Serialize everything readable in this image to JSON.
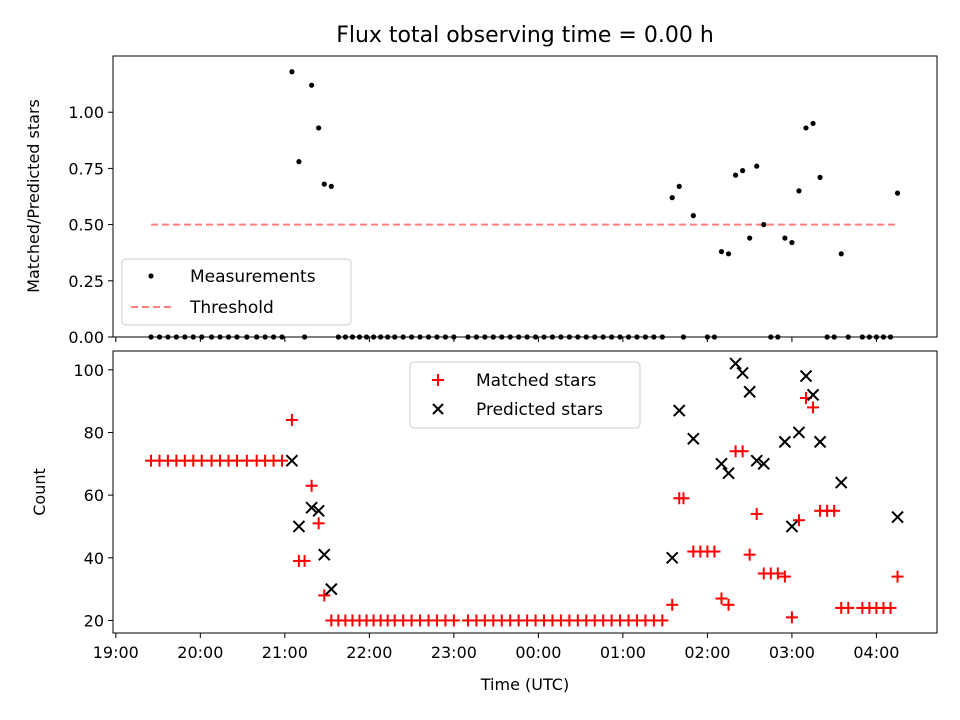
{
  "chart_data": [
    {
      "type": "scatter",
      "title": "Flux total observing time = 0.00 h",
      "xlabel": "",
      "ylabel": "Matched/Predicted stars",
      "ylim": [
        0,
        1.25
      ],
      "yticks": [
        "0.00",
        "0.25",
        "0.50",
        "0.75",
        "1.00"
      ],
      "grid": false,
      "legend_position": "lower-left",
      "threshold": {
        "name": "Threshold",
        "value": 0.5,
        "x_start": "19:25",
        "x_end": "04:15",
        "color": "#ff7f7f"
      },
      "series": [
        {
          "name": "Measurements",
          "color": "#000000",
          "points": [
            [
              "19:25",
              0
            ],
            [
              "19:31",
              0
            ],
            [
              "19:37",
              0
            ],
            [
              "19:43",
              0
            ],
            [
              "19:49",
              0
            ],
            [
              "19:55",
              0
            ],
            [
              "20:01",
              0
            ],
            [
              "20:08",
              0
            ],
            [
              "20:14",
              0
            ],
            [
              "20:20",
              0
            ],
            [
              "20:26",
              0
            ],
            [
              "20:33",
              0
            ],
            [
              "20:40",
              0
            ],
            [
              "20:46",
              0
            ],
            [
              "20:52",
              0
            ],
            [
              "20:58",
              0
            ],
            [
              "21:05",
              1.18
            ],
            [
              "21:10",
              0.78
            ],
            [
              "21:14",
              0
            ],
            [
              "21:19",
              1.12
            ],
            [
              "21:24",
              0.93
            ],
            [
              "21:28",
              0.68
            ],
            [
              "21:33",
              0.67
            ],
            [
              "21:38",
              0
            ],
            [
              "21:43",
              0
            ],
            [
              "21:48",
              0
            ],
            [
              "21:53",
              0
            ],
            [
              "21:58",
              0
            ],
            [
              "22:03",
              0
            ],
            [
              "22:08",
              0
            ],
            [
              "22:13",
              0
            ],
            [
              "22:18",
              0
            ],
            [
              "22:24",
              0
            ],
            [
              "22:30",
              0
            ],
            [
              "22:36",
              0
            ],
            [
              "22:42",
              0
            ],
            [
              "22:48",
              0
            ],
            [
              "22:54",
              0
            ],
            [
              "23:00",
              0
            ],
            [
              "23:10",
              0
            ],
            [
              "23:16",
              0
            ],
            [
              "23:22",
              0
            ],
            [
              "23:28",
              0
            ],
            [
              "23:34",
              0
            ],
            [
              "23:40",
              0
            ],
            [
              "23:46",
              0
            ],
            [
              "23:52",
              0
            ],
            [
              "23:58",
              0
            ],
            [
              "00:04",
              0
            ],
            [
              "00:10",
              0
            ],
            [
              "00:16",
              0
            ],
            [
              "00:22",
              0
            ],
            [
              "00:28",
              0
            ],
            [
              "00:34",
              0
            ],
            [
              "00:40",
              0
            ],
            [
              "00:46",
              0
            ],
            [
              "00:52",
              0
            ],
            [
              "00:58",
              0
            ],
            [
              "01:04",
              0
            ],
            [
              "01:10",
              0
            ],
            [
              "01:16",
              0
            ],
            [
              "01:22",
              0
            ],
            [
              "01:28",
              0
            ],
            [
              "01:35",
              0.62
            ],
            [
              "01:40",
              0.67
            ],
            [
              "01:43",
              0
            ],
            [
              "01:50",
              0.54
            ],
            [
              "02:00",
              0
            ],
            [
              "02:05",
              0
            ],
            [
              "02:10",
              0.38
            ],
            [
              "02:15",
              0.37
            ],
            [
              "02:20",
              0.72
            ],
            [
              "02:25",
              0.74
            ],
            [
              "02:30",
              0.44
            ],
            [
              "02:35",
              0.76
            ],
            [
              "02:40",
              0.5
            ],
            [
              "02:45",
              0
            ],
            [
              "02:50",
              0
            ],
            [
              "02:55",
              0.44
            ],
            [
              "03:00",
              0.42
            ],
            [
              "03:05",
              0.65
            ],
            [
              "03:10",
              0.93
            ],
            [
              "03:15",
              0.95
            ],
            [
              "03:20",
              0.71
            ],
            [
              "03:25",
              0
            ],
            [
              "03:30",
              0
            ],
            [
              "03:35",
              0.37
            ],
            [
              "03:40",
              0
            ],
            [
              "03:50",
              0
            ],
            [
              "03:55",
              0
            ],
            [
              "04:00",
              0
            ],
            [
              "04:05",
              0
            ],
            [
              "04:10",
              0
            ],
            [
              "04:15",
              0.64
            ]
          ]
        }
      ]
    },
    {
      "type": "scatter",
      "title": "",
      "xlabel": "Time (UTC)",
      "ylabel": "Count",
      "ylim": [
        16,
        106
      ],
      "yticks": [
        "20",
        "40",
        "60",
        "80",
        "100"
      ],
      "xticks": [
        "19:00",
        "20:00",
        "21:00",
        "22:00",
        "23:00",
        "00:00",
        "01:00",
        "02:00",
        "03:00",
        "04:00"
      ],
      "grid": false,
      "legend_position": "upper-center",
      "series": [
        {
          "name": "Matched stars",
          "color": "#ff0000",
          "marker": "plus",
          "points": [
            [
              "19:25",
              71
            ],
            [
              "19:31",
              71
            ],
            [
              "19:37",
              71
            ],
            [
              "19:43",
              71
            ],
            [
              "19:49",
              71
            ],
            [
              "19:55",
              71
            ],
            [
              "20:01",
              71
            ],
            [
              "20:08",
              71
            ],
            [
              "20:14",
              71
            ],
            [
              "20:20",
              71
            ],
            [
              "20:26",
              71
            ],
            [
              "20:33",
              71
            ],
            [
              "20:40",
              71
            ],
            [
              "20:46",
              71
            ],
            [
              "20:52",
              71
            ],
            [
              "20:58",
              71
            ],
            [
              "21:05",
              84
            ],
            [
              "21:10",
              39
            ],
            [
              "21:14",
              39
            ],
            [
              "21:19",
              63
            ],
            [
              "21:24",
              51
            ],
            [
              "21:28",
              28
            ],
            [
              "21:33",
              20
            ],
            [
              "21:38",
              20
            ],
            [
              "21:43",
              20
            ],
            [
              "21:48",
              20
            ],
            [
              "21:53",
              20
            ],
            [
              "21:58",
              20
            ],
            [
              "22:03",
              20
            ],
            [
              "22:08",
              20
            ],
            [
              "22:13",
              20
            ],
            [
              "22:18",
              20
            ],
            [
              "22:24",
              20
            ],
            [
              "22:30",
              20
            ],
            [
              "22:36",
              20
            ],
            [
              "22:42",
              20
            ],
            [
              "22:48",
              20
            ],
            [
              "22:54",
              20
            ],
            [
              "23:00",
              20
            ],
            [
              "23:10",
              20
            ],
            [
              "23:16",
              20
            ],
            [
              "23:22",
              20
            ],
            [
              "23:28",
              20
            ],
            [
              "23:34",
              20
            ],
            [
              "23:40",
              20
            ],
            [
              "23:46",
              20
            ],
            [
              "23:52",
              20
            ],
            [
              "23:58",
              20
            ],
            [
              "00:04",
              20
            ],
            [
              "00:10",
              20
            ],
            [
              "00:16",
              20
            ],
            [
              "00:22",
              20
            ],
            [
              "00:28",
              20
            ],
            [
              "00:34",
              20
            ],
            [
              "00:40",
              20
            ],
            [
              "00:46",
              20
            ],
            [
              "00:52",
              20
            ],
            [
              "00:58",
              20
            ],
            [
              "01:04",
              20
            ],
            [
              "01:10",
              20
            ],
            [
              "01:16",
              20
            ],
            [
              "01:22",
              20
            ],
            [
              "01:28",
              20
            ],
            [
              "01:35",
              25
            ],
            [
              "01:40",
              59
            ],
            [
              "01:43",
              59
            ],
            [
              "01:50",
              42
            ],
            [
              "01:55",
              42
            ],
            [
              "02:00",
              42
            ],
            [
              "02:05",
              42
            ],
            [
              "02:10",
              27
            ],
            [
              "02:15",
              25
            ],
            [
              "02:20",
              74
            ],
            [
              "02:25",
              74
            ],
            [
              "02:30",
              41
            ],
            [
              "02:35",
              54
            ],
            [
              "02:40",
              35
            ],
            [
              "02:45",
              35
            ],
            [
              "02:50",
              35
            ],
            [
              "02:55",
              34
            ],
            [
              "03:00",
              21
            ],
            [
              "03:05",
              52
            ],
            [
              "03:10",
              91
            ],
            [
              "03:15",
              88
            ],
            [
              "03:20",
              55
            ],
            [
              "03:25",
              55
            ],
            [
              "03:30",
              55
            ],
            [
              "03:35",
              24
            ],
            [
              "03:40",
              24
            ],
            [
              "03:50",
              24
            ],
            [
              "03:55",
              24
            ],
            [
              "04:00",
              24
            ],
            [
              "04:05",
              24
            ],
            [
              "04:10",
              24
            ],
            [
              "04:15",
              34
            ]
          ]
        },
        {
          "name": "Predicted stars",
          "color": "#000000",
          "marker": "x",
          "points": [
            [
              "21:05",
              71
            ],
            [
              "21:10",
              50
            ],
            [
              "21:19",
              56
            ],
            [
              "21:24",
              55
            ],
            [
              "21:28",
              41
            ],
            [
              "21:33",
              30
            ],
            [
              "01:35",
              40
            ],
            [
              "01:40",
              87
            ],
            [
              "01:50",
              78
            ],
            [
              "02:10",
              70
            ],
            [
              "02:15",
              67
            ],
            [
              "02:20",
              102
            ],
            [
              "02:25",
              99
            ],
            [
              "02:30",
              93
            ],
            [
              "02:35",
              71
            ],
            [
              "02:40",
              70
            ],
            [
              "02:55",
              77
            ],
            [
              "03:00",
              50
            ],
            [
              "03:05",
              80
            ],
            [
              "03:10",
              98
            ],
            [
              "03:15",
              92
            ],
            [
              "03:20",
              77
            ],
            [
              "03:35",
              64
            ],
            [
              "04:15",
              53
            ]
          ]
        }
      ]
    }
  ]
}
